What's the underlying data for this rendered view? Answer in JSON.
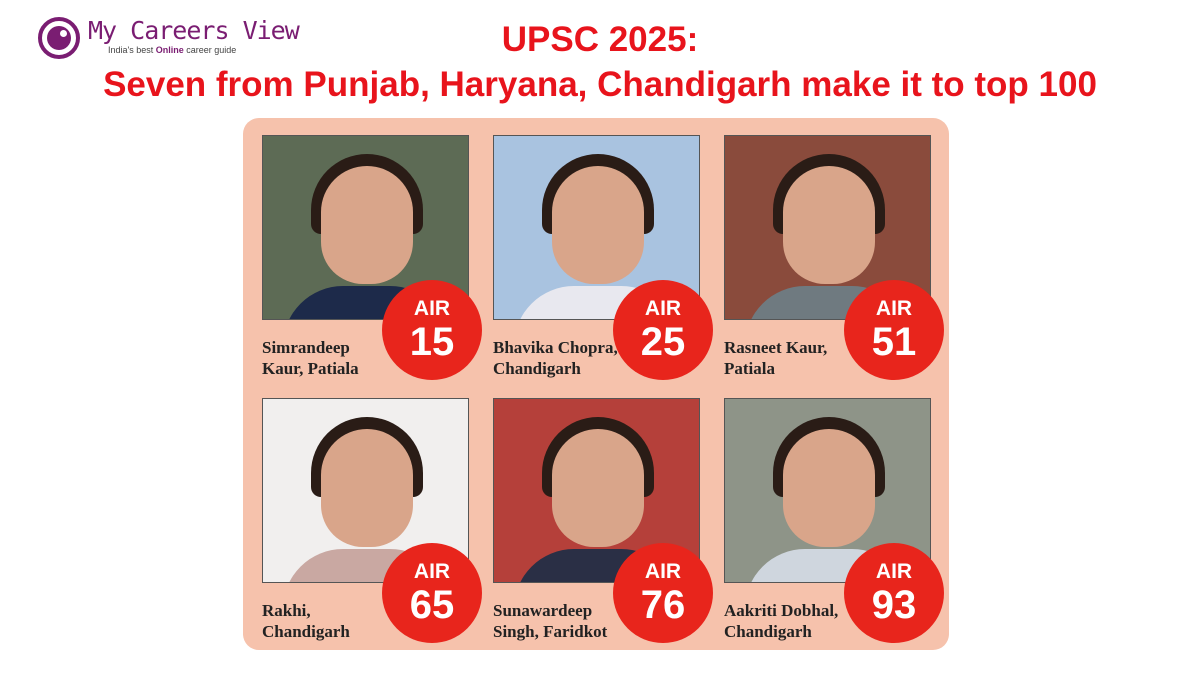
{
  "logo": {
    "name": "My Careers View",
    "tagline_pre": "India's best ",
    "tagline_em": "Online",
    "tagline_post": " career guide"
  },
  "title": {
    "line1": "UPSC 2025:",
    "line2": "Seven from Punjab, Haryana, Chandigarh make it to top 100"
  },
  "badge_color": "#e8251c",
  "toppers": [
    {
      "name1": "Simrandeep",
      "name2": "Kaur, Patiala",
      "air_label": "AIR",
      "rank": "15",
      "bg": "#5d6b55",
      "clothes": "#1d2a4a"
    },
    {
      "name1": "Bhavika Chopra,",
      "name2": "Chandigarh",
      "air_label": "AIR",
      "rank": "25",
      "bg": "#a9c3e0",
      "clothes": "#e8e8ef"
    },
    {
      "name1": "Rasneet Kaur,",
      "name2": "Patiala",
      "air_label": "AIR",
      "rank": "51",
      "bg": "#8a4b3c",
      "clothes": "#6f7a80"
    },
    {
      "name1": "Rakhi,",
      "name2": "Chandigarh",
      "air_label": "AIR",
      "rank": "65",
      "bg": "#f1efee",
      "clothes": "#c9a8a2"
    },
    {
      "name1": "Sunawardeep",
      "name2": "Singh, Faridkot",
      "air_label": "AIR",
      "rank": "76",
      "bg": "#b5403a",
      "clothes": "#2a2f45"
    },
    {
      "name1": "Aakriti Dobhal,",
      "name2": "Chandigarh",
      "air_label": "AIR",
      "rank": "93",
      "bg": "#8e9488",
      "clothes": "#cfd6de"
    }
  ]
}
